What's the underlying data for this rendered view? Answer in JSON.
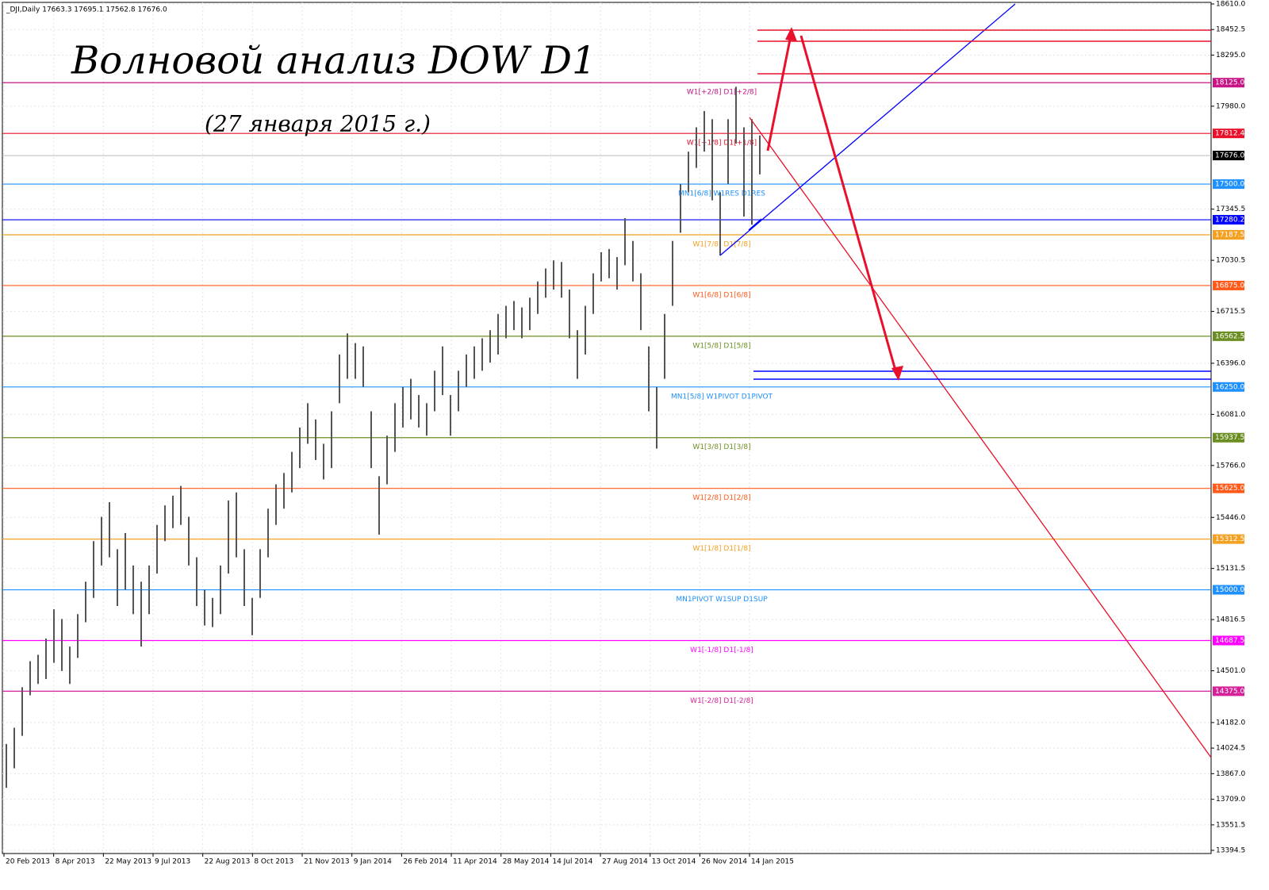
{
  "chart_data": {
    "type": "ohlc",
    "symbol_info": "_DJI,Daily  17663.3 17695.1 17562.8 17676.0",
    "title": "Волновой анализ DOW D1",
    "subtitle": "(27 января 2015 г.)",
    "x_labels": [
      "20 Feb 2013",
      "8 Apr 2013",
      "22 May 2013",
      "9 Jul 2013",
      "22 Aug 2013",
      "8 Oct 2013",
      "21 Nov 2013",
      "9 Jan 2014",
      "26 Feb 2014",
      "11 Apr 2014",
      "28 May 2014",
      "14 Jul 2014",
      "27 Aug 2014",
      "13 Oct 2014",
      "26 Nov 2014",
      "14 Jan 2015"
    ],
    "high": [
      14050,
      14150,
      14400,
      14560,
      14600,
      14700,
      14880,
      14820,
      14650,
      14850,
      15050,
      15300,
      15450,
      15540,
      15250,
      15350,
      15150,
      15050,
      15150,
      15400,
      15520,
      15580,
      15640,
      15450,
      15200,
      15000,
      14950,
      15150,
      15550,
      15600,
      15250,
      14950,
      15250,
      15500,
      15650,
      15720,
      15850,
      16000,
      16150,
      16050,
      15900,
      16100,
      16450,
      16580,
      16520,
      16500,
      16100,
      15700,
      15950,
      16150,
      16250,
      16300,
      16200,
      16150,
      16350,
      16500,
      16200,
      16350,
      16450,
      16500,
      16550,
      16600,
      16700,
      16750,
      16780,
      16740,
      16800,
      16900,
      16980,
      17030,
      17020,
      16850,
      16600,
      16750,
      16950,
      17080,
      17100,
      17050,
      17290,
      17150,
      16950,
      16500,
      16250,
      16700,
      17150,
      17500,
      17700,
      17850,
      17950,
      17900,
      17450,
      17900,
      18100,
      17850,
      17900,
      17800
    ],
    "low": [
      13780,
      13900,
      14100,
      14350,
      14420,
      14450,
      14550,
      14500,
      14420,
      14580,
      14800,
      14950,
      15150,
      15200,
      14900,
      15000,
      14850,
      14650,
      14850,
      15100,
      15300,
      15380,
      15400,
      15150,
      14900,
      14780,
      14770,
      14850,
      15100,
      15200,
      14900,
      14720,
      14950,
      15200,
      15400,
      15500,
      15600,
      15750,
      15900,
      15800,
      15680,
      15750,
      16150,
      16300,
      16300,
      16250,
      15750,
      15340,
      15650,
      15850,
      16000,
      16050,
      16000,
      15950,
      16100,
      16200,
      15950,
      16100,
      16250,
      16300,
      16350,
      16400,
      16450,
      16550,
      16600,
      16550,
      16600,
      16700,
      16800,
      16850,
      16800,
      16550,
      16300,
      16450,
      16700,
      16900,
      16920,
      16850,
      17000,
      16900,
      16600,
      16100,
      15870,
      16300,
      16750,
      17200,
      17450,
      17600,
      17700,
      17400,
      17060,
      17500,
      17750,
      17300,
      17250,
      17560
    ],
    "color": "#555555",
    "ylim": [
      13394.5,
      18610
    ],
    "yticks": [
      {
        "value": 18610,
        "label": "18610.0"
      },
      18452.5,
      {
        "value": 18295,
        "label": "18295.0"
      },
      {
        "value": 17980,
        "label": "17980.0"
      },
      17345.5,
      17030.5,
      16715.5,
      {
        "value": 16396,
        "label": "16396.0"
      },
      {
        "value": 16081,
        "label": "16081.0"
      },
      {
        "value": 15766,
        "label": "15766.0"
      },
      {
        "value": 15446,
        "label": "15446.0"
      },
      15131.5,
      14816.5,
      {
        "value": 14501,
        "label": "14501.0"
      },
      {
        "value": 14182,
        "label": "14182.0"
      },
      14024.5,
      {
        "value": 13867,
        "label": "13867.0"
      },
      {
        "value": 13709,
        "label": "13709.0"
      },
      13551.5,
      13394.5
    ],
    "grid": true,
    "current_price": {
      "value": 17676,
      "label": "17676.0"
    },
    "levels": [
      {
        "value": 18125,
        "label": "18125.0",
        "name": "W1[+2/8] D1[+2/8]",
        "color": "#c71585"
      },
      {
        "value": 17812.4,
        "name": "W1[+1/8] D1[+1/8]",
        "color": "#e8102a"
      },
      {
        "value": 17500,
        "label": "17500.0",
        "name": "MN1[6/8] W1RES D1RES",
        "color": "#1e90ff"
      },
      {
        "value": 17280.2,
        "color": "#0000ff"
      },
      {
        "value": 17187.5,
        "name": "W1[7/8] D1[7/8]",
        "color": "#f4a020"
      },
      {
        "value": 16875,
        "label": "16875.0",
        "name": "W1[6/8] D1[6/8]",
        "color": "#ff5a1a"
      },
      {
        "value": 16562.5,
        "name": "W1[5/8] D1[5/8]",
        "color": "#6b8e23"
      },
      {
        "value": 16250,
        "label": "16250.0",
        "name": "MN1[5/8] W1PIVOT D1PIVOT",
        "color": "#1e90ff"
      },
      {
        "value": 15937.5,
        "name": "W1[3/8] D1[3/8]",
        "color": "#6b8e23"
      },
      {
        "value": 15625,
        "label": "15625.0",
        "name": "W1[2/8] D1[2/8]",
        "color": "#ff5a1a"
      },
      {
        "value": 15312.5,
        "name": "W1[1/8] D1[1/8]",
        "color": "#f4a020"
      },
      {
        "value": 15000,
        "label": "15000.0",
        "name": "MN1PIVOT W1SUP D1SUP",
        "color": "#1e90ff"
      },
      {
        "value": 14687.5,
        "name": "W1[-1/8] D1[-1/8]",
        "color": "#ff00ff"
      },
      {
        "value": 14375,
        "label": "14375.0",
        "name": "W1[-2/8] D1[-2/8]",
        "color": "#d6209a"
      }
    ]
  }
}
